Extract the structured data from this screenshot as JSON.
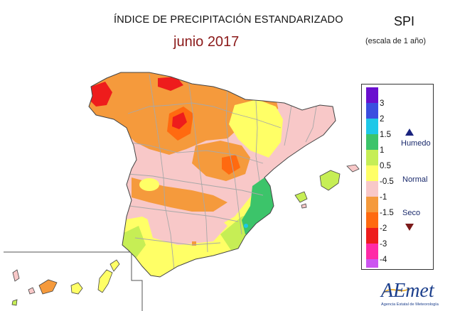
{
  "header": {
    "title": "ÍNDICE DE PRECIPITACIÓN ESTANDARIZADO",
    "subtitle": "junio 2017",
    "spi": "SPI",
    "scale": "(escala de 1 año)"
  },
  "legend": {
    "ticks": [
      "3",
      "2",
      "1.5",
      "1",
      "0.5",
      "-0.5",
      "-1",
      "-1.5",
      "-2",
      "-3",
      "-4"
    ],
    "colors": [
      "#6a0fcf",
      "#3b4ee0",
      "#1ec8e8",
      "#3cc46a",
      "#c6ee55",
      "#ffff66",
      "#f8c8c8",
      "#f59a3c",
      "#ff6a10",
      "#ee1c1c",
      "#ff2aa6",
      "#cc55f0"
    ],
    "categories": [
      "Humedo",
      "Normal",
      "Seco"
    ]
  },
  "logo": {
    "text": "AEmet",
    "sub": "Agencia Estatal de Meteorología"
  },
  "style": {
    "land_border": "#444444",
    "region_border": "#a8a8a8",
    "sea": "#ffffff"
  }
}
